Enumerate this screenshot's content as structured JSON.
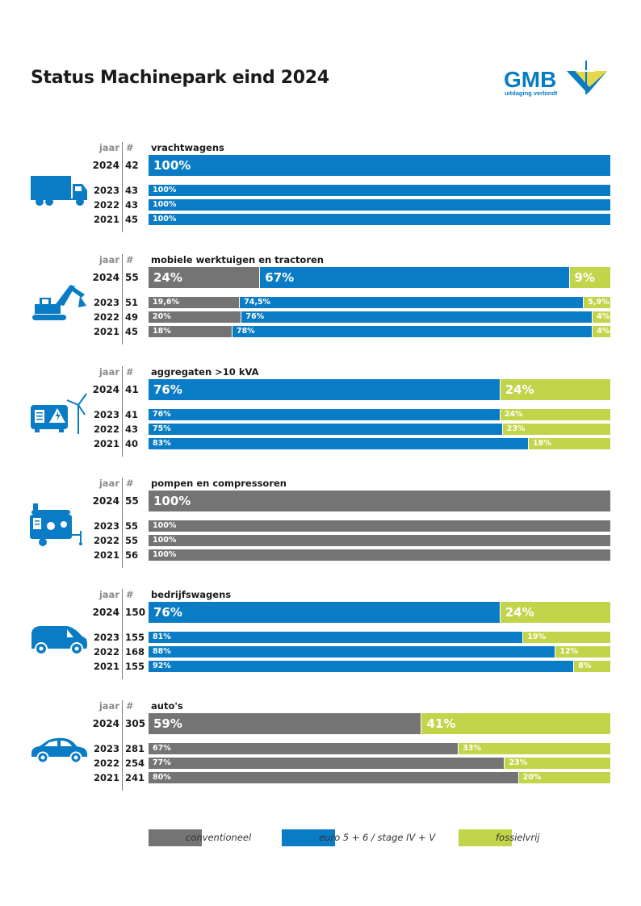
{
  "title": "Status Machinepark eind 2024",
  "logo": {
    "name": "GMB",
    "tagline": "uitdaging verbindt"
  },
  "colors": {
    "conventioneel": "#747474",
    "euro": "#0a7cc5",
    "fossielvrij": "#c2d54a"
  },
  "chart_data": {
    "type": "bar",
    "stacked": true,
    "orientation": "horizontal",
    "value_unit": "%",
    "column_headers": {
      "year": "jaar",
      "count": "#"
    },
    "legend": [
      {
        "key": "conv",
        "label": "conventioneel"
      },
      {
        "key": "euro",
        "label": "euro 5 + 6 / stage IV + V"
      },
      {
        "key": "foss",
        "label": "fossielvrij"
      }
    ],
    "groups": [
      {
        "title": "vrachtwagens",
        "icon": "truck-icon",
        "rows": [
          {
            "year": "2024",
            "count": "42",
            "segments": [
              {
                "series": "euro",
                "value": 100,
                "label": "100%"
              }
            ]
          },
          {
            "year": "2023",
            "count": "43",
            "segments": [
              {
                "series": "euro",
                "value": 100,
                "label": "100%"
              }
            ]
          },
          {
            "year": "2022",
            "count": "43",
            "segments": [
              {
                "series": "euro",
                "value": 100,
                "label": "100%"
              }
            ]
          },
          {
            "year": "2021",
            "count": "45",
            "segments": [
              {
                "series": "euro",
                "value": 100,
                "label": "100%"
              }
            ]
          }
        ]
      },
      {
        "title": "mobiele werktuigen en tractoren",
        "icon": "excavator-icon",
        "rows": [
          {
            "year": "2024",
            "count": "55",
            "segments": [
              {
                "series": "conv",
                "value": 24,
                "label": "24%"
              },
              {
                "series": "euro",
                "value": 67,
                "label": "67%"
              },
              {
                "series": "foss",
                "value": 9,
                "label": "9%"
              }
            ]
          },
          {
            "year": "2023",
            "count": "51",
            "segments": [
              {
                "series": "conv",
                "value": 19.6,
                "label": "19,6%"
              },
              {
                "series": "euro",
                "value": 74.5,
                "label": "74,5%"
              },
              {
                "series": "foss",
                "value": 5.9,
                "label": "5,9%"
              }
            ]
          },
          {
            "year": "2022",
            "count": "49",
            "segments": [
              {
                "series": "conv",
                "value": 20,
                "label": "20%"
              },
              {
                "series": "euro",
                "value": 76,
                "label": "76%"
              },
              {
                "series": "foss",
                "value": 4,
                "label": "4%"
              }
            ]
          },
          {
            "year": "2021",
            "count": "45",
            "segments": [
              {
                "series": "conv",
                "value": 18,
                "label": "18%"
              },
              {
                "series": "euro",
                "value": 78,
                "label": "78%"
              },
              {
                "series": "foss",
                "value": 4,
                "label": "4%"
              }
            ]
          }
        ]
      },
      {
        "title": "aggregaten >10 kVA",
        "icon": "generator-icon",
        "rows": [
          {
            "year": "2024",
            "count": "41",
            "segments": [
              {
                "series": "euro",
                "value": 76,
                "label": "76%"
              },
              {
                "series": "foss",
                "value": 24,
                "label": "24%"
              }
            ]
          },
          {
            "year": "2023",
            "count": "41",
            "segments": [
              {
                "series": "euro",
                "value": 76,
                "label": "76%"
              },
              {
                "series": "foss",
                "value": 24,
                "label": "24%"
              }
            ]
          },
          {
            "year": "2022",
            "count": "43",
            "segments": [
              {
                "series": "euro",
                "value": 75,
                "label": "75%"
              },
              {
                "series": "foss",
                "value": 23,
                "label": "23%"
              }
            ]
          },
          {
            "year": "2021",
            "count": "40",
            "segments": [
              {
                "series": "euro",
                "value": 83,
                "label": "83%"
              },
              {
                "series": "foss",
                "value": 18,
                "label": "18%"
              }
            ]
          }
        ]
      },
      {
        "title": "pompen en compressoren",
        "icon": "compressor-icon",
        "rows": [
          {
            "year": "2024",
            "count": "55",
            "segments": [
              {
                "series": "conv",
                "value": 100,
                "label": "100%"
              }
            ]
          },
          {
            "year": "2023",
            "count": "55",
            "segments": [
              {
                "series": "conv",
                "value": 100,
                "label": "100%"
              }
            ]
          },
          {
            "year": "2022",
            "count": "55",
            "segments": [
              {
                "series": "conv",
                "value": 100,
                "label": "100%"
              }
            ]
          },
          {
            "year": "2021",
            "count": "56",
            "segments": [
              {
                "series": "conv",
                "value": 100,
                "label": "100%"
              }
            ]
          }
        ]
      },
      {
        "title": "bedrijfswagens",
        "icon": "van-icon",
        "rows": [
          {
            "year": "2024",
            "count": "150",
            "segments": [
              {
                "series": "euro",
                "value": 76,
                "label": "76%"
              },
              {
                "series": "foss",
                "value": 24,
                "label": "24%"
              }
            ]
          },
          {
            "year": "2023",
            "count": "155",
            "segments": [
              {
                "series": "euro",
                "value": 81,
                "label": "81%"
              },
              {
                "series": "foss",
                "value": 19,
                "label": "19%"
              }
            ]
          },
          {
            "year": "2022",
            "count": "168",
            "segments": [
              {
                "series": "euro",
                "value": 88,
                "label": "88%"
              },
              {
                "series": "foss",
                "value": 12,
                "label": "12%"
              }
            ]
          },
          {
            "year": "2021",
            "count": "155",
            "segments": [
              {
                "series": "euro",
                "value": 92,
                "label": "92%"
              },
              {
                "series": "foss",
                "value": 8,
                "label": "8%"
              }
            ]
          }
        ]
      },
      {
        "title": "auto's",
        "icon": "car-icon",
        "rows": [
          {
            "year": "2024",
            "count": "305",
            "segments": [
              {
                "series": "conv",
                "value": 59,
                "label": "59%"
              },
              {
                "series": "foss",
                "value": 41,
                "label": "41%"
              }
            ]
          },
          {
            "year": "2023",
            "count": "281",
            "segments": [
              {
                "series": "conv",
                "value": 67,
                "label": "67%"
              },
              {
                "series": "foss",
                "value": 33,
                "label": "33%"
              }
            ]
          },
          {
            "year": "2022",
            "count": "254",
            "segments": [
              {
                "series": "conv",
                "value": 77,
                "label": "77%"
              },
              {
                "series": "foss",
                "value": 23,
                "label": "23%"
              }
            ]
          },
          {
            "year": "2021",
            "count": "241",
            "segments": [
              {
                "series": "conv",
                "value": 80,
                "label": "80%"
              },
              {
                "series": "foss",
                "value": 20,
                "label": "20%"
              }
            ]
          }
        ]
      }
    ]
  }
}
